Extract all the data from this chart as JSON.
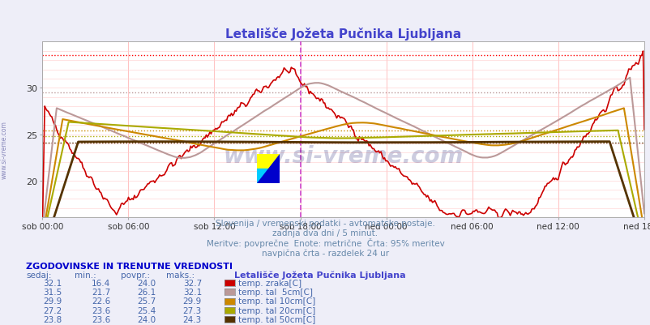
{
  "title": "Letališče Jožeta Pučnika Ljubljana",
  "title_color": "#4444cc",
  "bg_color": "#eeeef8",
  "plot_bg_color": "#ffffff",
  "xlabel_ticks": [
    "sob 00:00",
    "sob 06:00",
    "sob 12:00",
    "sob 18:00",
    "ned 00:00",
    "ned 06:00",
    "ned 12:00",
    "ned 18:00"
  ],
  "ylim_low": 16,
  "ylim_high": 35,
  "yticks": [
    20,
    25,
    30
  ],
  "subtitle_lines": [
    "Slovenija / vremenski podatki - avtomatske postaje.",
    "zadnja dva dni / 5 minut.",
    "Meritve: povprečne  Enote: metrične  Črta: 95% meritev",
    "navpična črta - razdelek 24 ur"
  ],
  "subtitle_color": "#6688aa",
  "legend_title": "Letališče Jožeta Pučnika Ljubljana",
  "legend_title_color": "#4444cc",
  "table_header": "ZGODOVINSKE IN TRENUTNE VREDNOSTI",
  "table_header_color": "#0000cc",
  "table_col_headers": [
    "sedaj:",
    "min.:",
    "povpr.:",
    "maks.:"
  ],
  "table_rows": [
    [
      32.1,
      16.4,
      24.0,
      32.7
    ],
    [
      31.5,
      21.7,
      26.1,
      32.1
    ],
    [
      29.9,
      22.6,
      25.7,
      29.9
    ],
    [
      27.2,
      23.6,
      25.4,
      27.3
    ],
    [
      23.8,
      23.6,
      24.0,
      24.3
    ]
  ],
  "series": [
    {
      "label": "temp. zraka[C]",
      "color": "#cc0000",
      "lw": 1.2
    },
    {
      "label": "temp. tal  5cm[C]",
      "color": "#bb9999",
      "lw": 1.5
    },
    {
      "label": "temp. tal 10cm[C]",
      "color": "#cc8800",
      "lw": 1.5
    },
    {
      "label": "temp. tal 20cm[C]",
      "color": "#aaaa00",
      "lw": 1.5
    },
    {
      "label": "temp. tal 50cm[C]",
      "color": "#553300",
      "lw": 2.0
    }
  ],
  "dotted_line_values": [
    33.5,
    29.5,
    25.4,
    24.8,
    24.1
  ],
  "dotted_line_colors": [
    "#ff0000",
    "#bb9999",
    "#cc8800",
    "#aaaa00",
    "#553300"
  ],
  "vline_color": "#cc44cc",
  "watermark": "www.si-vreme.com",
  "n_points": 504
}
